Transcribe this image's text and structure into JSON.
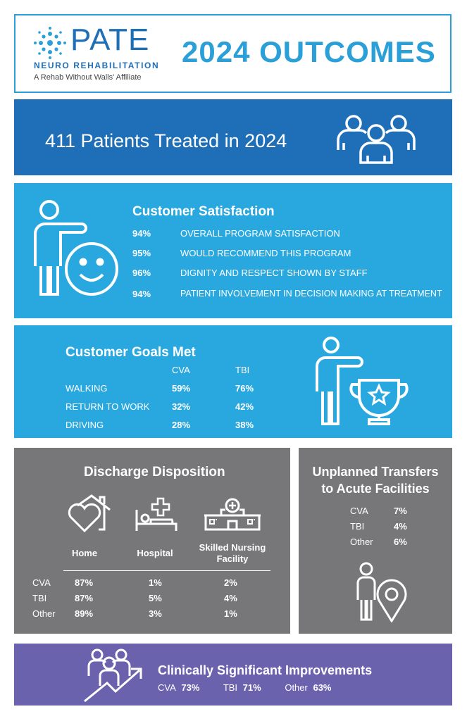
{
  "header": {
    "logo_word": "PATE",
    "logo_sub": "NEURO REHABILITATION",
    "logo_tagline": "A Rehab Without Walls' Affiliate",
    "title": "2024 OUTCOMES",
    "logo_icon": "snowflake-logo-icon"
  },
  "patients": {
    "text": "411 Patients Treated in 2024",
    "icon": "group-of-people-icon"
  },
  "satisfaction": {
    "title": "Customer Satisfaction",
    "icon": "person-with-smiley-icon",
    "rows": [
      {
        "pct": "94%",
        "label": "OVERALL PROGRAM SATISFACTION"
      },
      {
        "pct": "95%",
        "label": "WOULD RECOMMEND THIS PROGRAM"
      },
      {
        "pct": "96%",
        "label": "DIGNITY AND RESPECT SHOWN BY STAFF"
      },
      {
        "pct": "94%",
        "label": "PATIENT INVOLVEMENT IN DECISION MAKING AT TREATMENT"
      }
    ]
  },
  "goals": {
    "title": "Customer Goals Met",
    "icon": "person-with-trophy-icon",
    "col_cva": "CVA",
    "col_tbi": "TBI",
    "rows": [
      {
        "label": "WALKING",
        "cva": "59%",
        "tbi": "76%"
      },
      {
        "label": "RETURN TO WORK",
        "cva": "32%",
        "tbi": "42%"
      },
      {
        "label": "DRIVING",
        "cva": "28%",
        "tbi": "38%"
      }
    ]
  },
  "discharge": {
    "title": "Discharge Disposition",
    "icons": [
      "house-with-heart-icon",
      "hospital-bed-icon",
      "nursing-facility-icon"
    ],
    "col_home": "Home",
    "col_hospital": "Hospital",
    "col_snf": "Skilled Nursing Facility",
    "rows": [
      {
        "label": "CVA",
        "home": "87%",
        "hospital": "1%",
        "snf": "2%"
      },
      {
        "label": "TBI",
        "home": "87%",
        "hospital": "5%",
        "snf": "4%"
      },
      {
        "label": "Other",
        "home": "89%",
        "hospital": "3%",
        "snf": "1%"
      }
    ]
  },
  "transfers": {
    "title_line1": "Unplanned Transfers",
    "title_line2": "to Acute Facilities",
    "icon": "person-with-location-pin-icon",
    "rows": [
      {
        "label": "CVA",
        "value": "7%"
      },
      {
        "label": "TBI",
        "value": "4%"
      },
      {
        "label": "Other",
        "value": "6%"
      }
    ]
  },
  "clinical": {
    "title": "Clinically Significant Improvements",
    "icon": "group-with-rising-arrow-icon",
    "items": [
      {
        "label": "CVA",
        "value": "73%"
      },
      {
        "label": "TBI",
        "value": "71%"
      },
      {
        "label": "Other",
        "value": "63%"
      }
    ]
  },
  "colors": {
    "dark_blue": "#1f6fb8",
    "light_blue": "#29a8e0",
    "gray": "#77777a",
    "purple": "#6a62ad"
  }
}
